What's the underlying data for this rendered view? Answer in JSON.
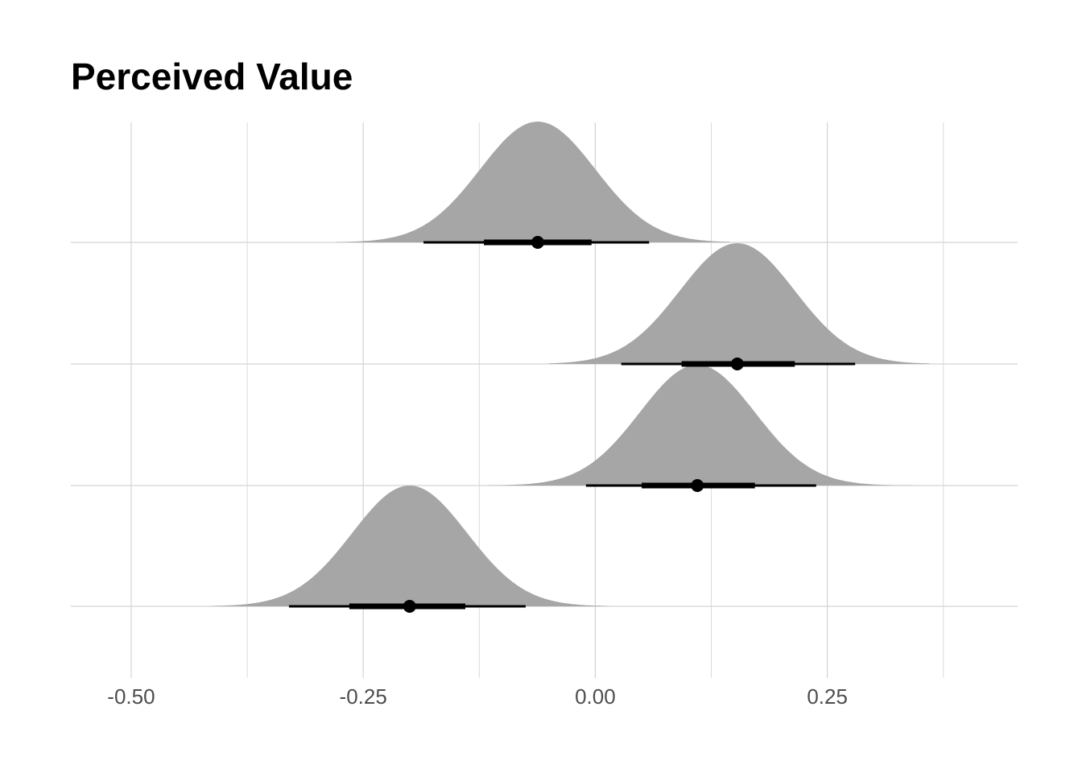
{
  "chart_data": {
    "type": "halfeye",
    "title": "Perceived Value",
    "xlabel": "",
    "ylabel": "",
    "xlim": [
      -0.565,
      0.455
    ],
    "x_ticks": [
      -0.5,
      -0.25,
      0.0,
      0.25
    ],
    "x_tick_labels": [
      "-0.50",
      "-0.25",
      "0.00",
      "0.25"
    ],
    "x_minor_grid": [
      -0.375,
      -0.125,
      0.125,
      0.375
    ],
    "grid": true,
    "legend": "none",
    "fill_color": "#a6a6a6",
    "grid_color": "#d3d3d3",
    "interval_color": "#000000",
    "series": [
      {
        "median": -0.062,
        "sd": 0.062,
        "range": [
          -0.28,
          0.145
        ],
        "interval_66": [
          -0.12,
          -0.004
        ],
        "interval_95": [
          -0.185,
          0.058
        ]
      },
      {
        "median": 0.153,
        "sd": 0.062,
        "range": [
          -0.05,
          0.36
        ],
        "interval_66": [
          0.093,
          0.215
        ],
        "interval_95": [
          0.028,
          0.28
        ]
      },
      {
        "median": 0.11,
        "sd": 0.062,
        "range": [
          -0.115,
          0.345
        ],
        "interval_66": [
          0.05,
          0.172
        ],
        "interval_95": [
          -0.01,
          0.238
        ]
      },
      {
        "median": -0.2,
        "sd": 0.062,
        "range": [
          -0.415,
          0.015
        ],
        "interval_66": [
          -0.265,
          -0.14
        ],
        "interval_95": [
          -0.33,
          -0.075
        ]
      }
    ]
  }
}
